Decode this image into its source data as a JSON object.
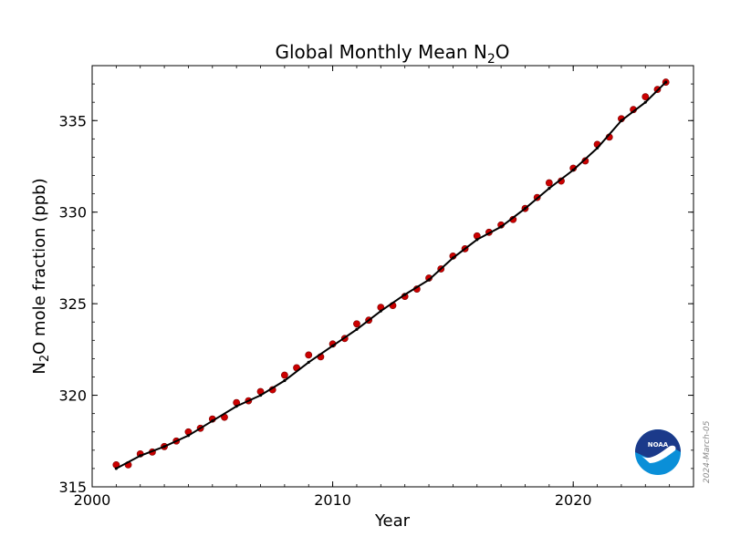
{
  "chart_data": {
    "type": "line",
    "title_main": "Global Monthly Mean N",
    "title_sub": "2",
    "title_tail": "O",
    "xlabel": "Year",
    "ylabel_main": "N",
    "ylabel_sub": "2",
    "ylabel_tail": "O mole fraction (ppb)",
    "xlim": [
      2000,
      2025
    ],
    "ylim": [
      315,
      338
    ],
    "x_ticks": [
      2000,
      2010,
      2020
    ],
    "y_ticks": [
      315,
      320,
      325,
      330,
      335
    ],
    "date_stamp": "2024-March-05",
    "logo_text": "NOAA",
    "colors": {
      "monthly": "#cc0000",
      "trend": "#000000",
      "logo_blue": "#0a8fd8",
      "logo_navy": "#1b3a8a"
    },
    "series": [
      {
        "name": "monthly",
        "style": "markers",
        "x": [
          2001.0,
          2001.5,
          2002.0,
          2002.5,
          2003.0,
          2003.5,
          2004.0,
          2004.5,
          2005.0,
          2005.5,
          2006.0,
          2006.5,
          2007.0,
          2007.5,
          2008.0,
          2008.5,
          2009.0,
          2009.5,
          2010.0,
          2010.5,
          2011.0,
          2011.5,
          2012.0,
          2012.5,
          2013.0,
          2013.5,
          2014.0,
          2014.5,
          2015.0,
          2015.5,
          2016.0,
          2016.5,
          2017.0,
          2017.5,
          2018.0,
          2018.5,
          2019.0,
          2019.5,
          2020.0,
          2020.5,
          2021.0,
          2021.5,
          2022.0,
          2022.5,
          2023.0,
          2023.5,
          2023.85
        ],
        "y": [
          316.2,
          316.2,
          316.8,
          316.9,
          317.2,
          317.5,
          318.0,
          318.2,
          318.7,
          318.8,
          319.6,
          319.7,
          320.2,
          320.3,
          321.1,
          321.5,
          322.2,
          322.1,
          322.8,
          323.1,
          323.9,
          324.1,
          324.8,
          324.9,
          325.4,
          325.8,
          326.4,
          326.9,
          327.6,
          328.0,
          328.7,
          328.9,
          329.3,
          329.6,
          330.2,
          330.8,
          331.6,
          331.7,
          332.4,
          332.8,
          333.7,
          334.1,
          335.1,
          335.6,
          336.3,
          336.7,
          337.1
        ]
      },
      {
        "name": "trend",
        "style": "line",
        "x": [
          2001.0,
          2002.0,
          2003.0,
          2004.0,
          2005.0,
          2006.0,
          2007.0,
          2008.0,
          2009.0,
          2010.0,
          2011.0,
          2012.0,
          2013.0,
          2014.0,
          2015.0,
          2016.0,
          2017.0,
          2018.0,
          2019.0,
          2020.0,
          2021.0,
          2022.0,
          2023.0,
          2023.85
        ],
        "y": [
          316.0,
          316.7,
          317.2,
          317.8,
          318.6,
          319.4,
          320.0,
          320.8,
          321.8,
          322.7,
          323.6,
          324.6,
          325.5,
          326.3,
          327.5,
          328.5,
          329.2,
          330.2,
          331.3,
          332.3,
          333.5,
          335.0,
          336.0,
          337.1
        ]
      }
    ]
  }
}
